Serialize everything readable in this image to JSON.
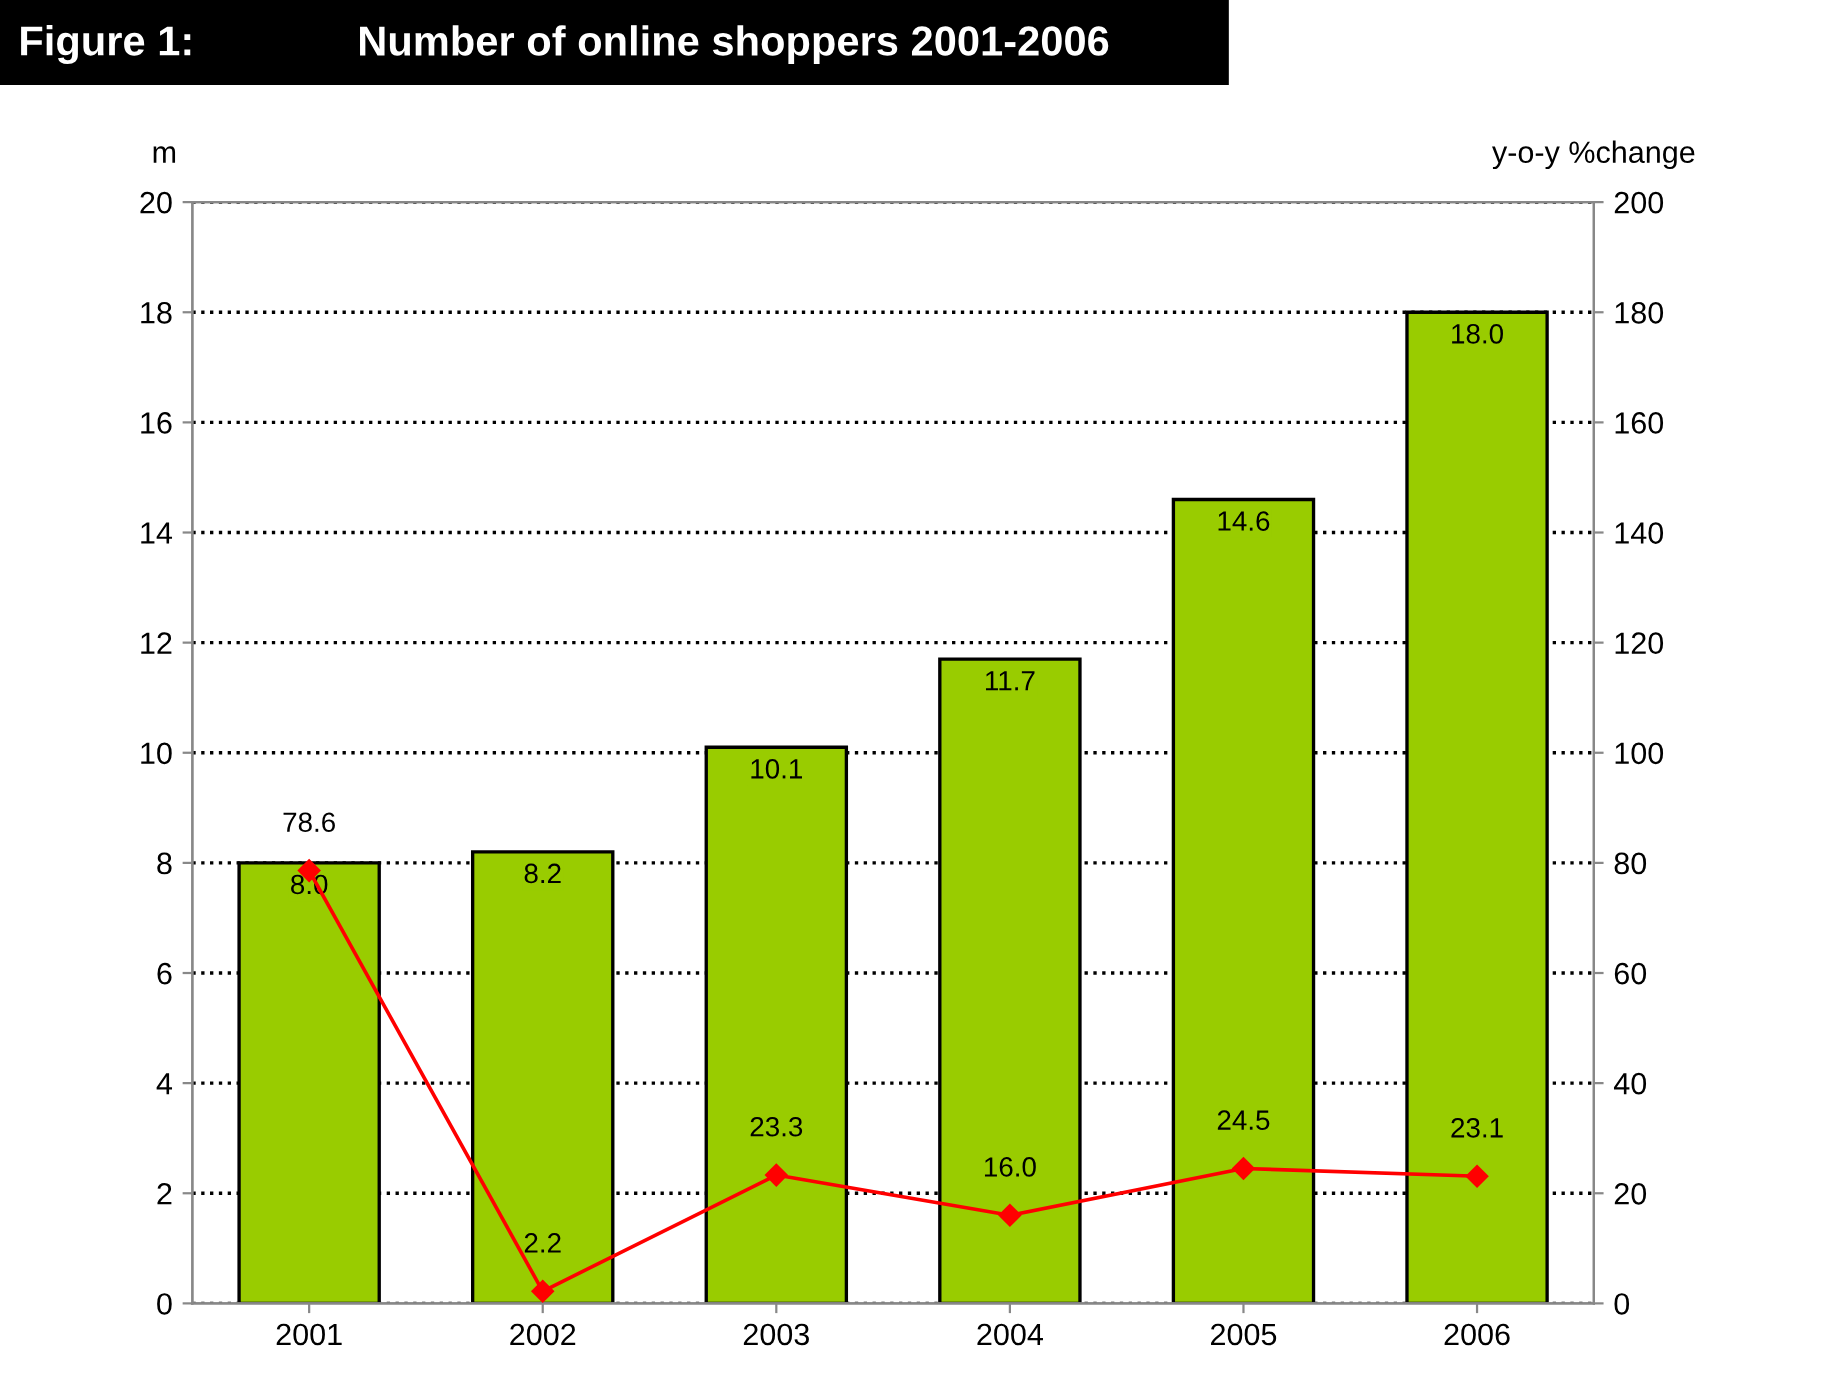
{
  "chart_data": {
    "type": "bar",
    "title": "Figure 1:",
    "subtitle": "Number of online shoppers 2001-2006",
    "ylabel": "m",
    "y2label": "y-o-y %change",
    "categories": [
      "2001",
      "2002",
      "2003",
      "2004",
      "2005",
      "2006"
    ],
    "series": [
      {
        "color": "#99cc00",
        "values": [
          8.0,
          8.2,
          10.1,
          11.7,
          14.6,
          18.0
        ],
        "value_labels": [
          "8.0",
          "8.2",
          "10.1",
          "11.7",
          "14.6",
          "18.0"
        ]
      },
      {
        "type": "line",
        "axis": "y2",
        "color": "#ff0000",
        "marker": "diamond",
        "values": [
          78.6,
          2.2,
          23.3,
          16.0,
          24.5,
          23.1
        ],
        "value_labels": [
          "78.6",
          "2.2",
          "23.3",
          "16.0",
          "24.5",
          "23.1"
        ]
      }
    ],
    "ylim": [
      0,
      20
    ],
    "yticks": [
      0,
      2,
      4,
      6,
      8,
      10,
      12,
      14,
      16,
      18,
      20
    ],
    "y2lim": [
      0,
      200
    ],
    "y2ticks": [
      0,
      20,
      40,
      60,
      80,
      100,
      120,
      140,
      160,
      180,
      200
    ],
    "grid": "y",
    "legend": false
  }
}
